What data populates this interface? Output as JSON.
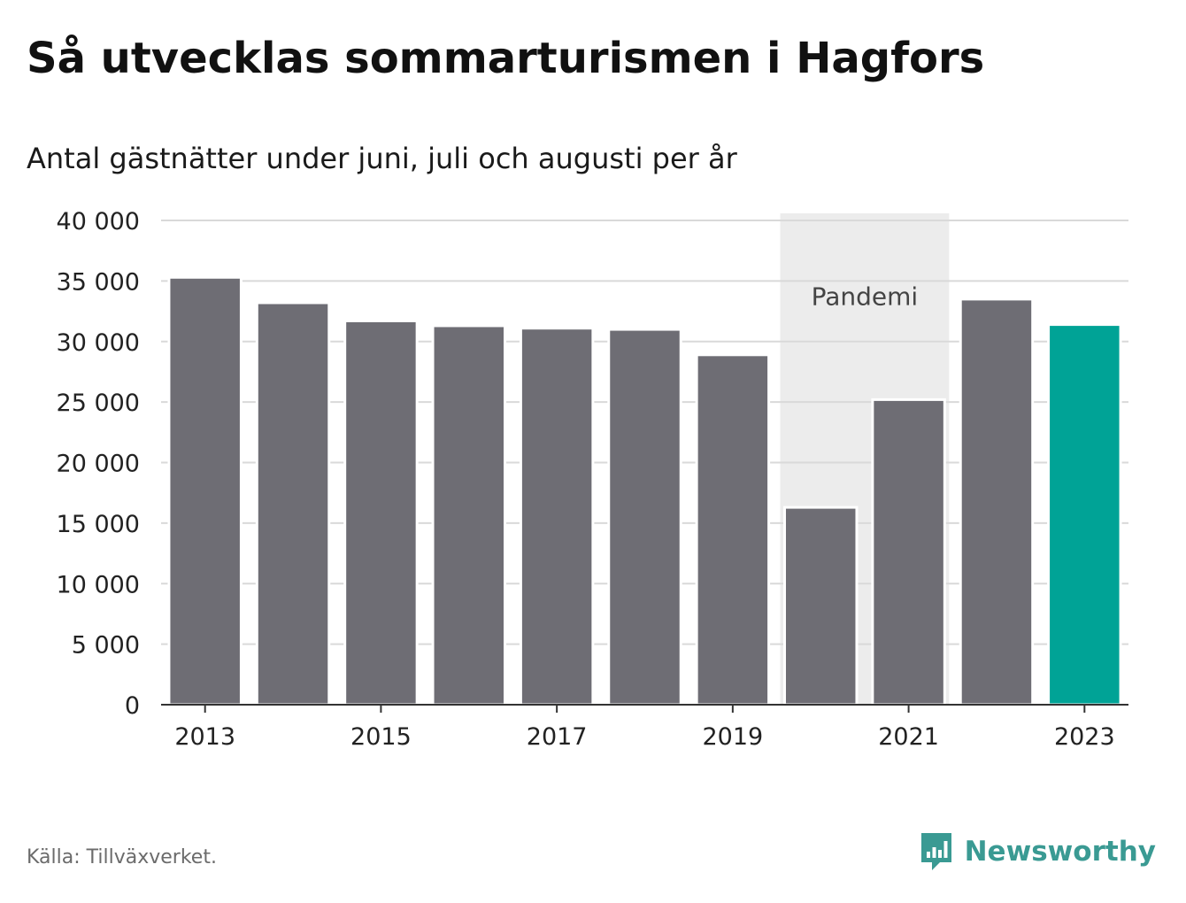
{
  "header": {
    "title": "Så utvecklas sommarturismen i Hagfors",
    "subtitle": "Antal gästnätter under juni, juli och augusti per år"
  },
  "footer": {
    "source": "Källa: Tillväxverket.",
    "brand": "Newsworthy",
    "brand_icon": "newsworthy-logo-icon"
  },
  "colors": {
    "bar": "#6e6d74",
    "highlight": "#00a396",
    "band": "#ececec",
    "grid": "#d9d9d9",
    "axis": "#333333",
    "brand": "#3a9a93"
  },
  "chart_data": {
    "type": "bar",
    "categories": [
      "2013",
      "2014",
      "2015",
      "2016",
      "2017",
      "2018",
      "2019",
      "2020",
      "2021",
      "2022",
      "2023"
    ],
    "values": [
      35300,
      33200,
      31700,
      31300,
      31100,
      31000,
      28900,
      16300,
      25200,
      33500,
      31400
    ],
    "highlight_category": "2023",
    "x_tick_labels": [
      "2013",
      "2015",
      "2017",
      "2019",
      "2021",
      "2023"
    ],
    "y_ticks": [
      0,
      5000,
      10000,
      15000,
      20000,
      25000,
      30000,
      35000,
      40000
    ],
    "y_tick_labels": [
      "0",
      "5 000",
      "10 000",
      "15 000",
      "20 000",
      "25 000",
      "30 000",
      "35 000",
      "40 000"
    ],
    "ylim": [
      0,
      40000
    ],
    "grid": true,
    "legend": "none",
    "annotations": [
      {
        "label": "Pandemi",
        "from_category": "2020",
        "to_category": "2021"
      }
    ],
    "xlabel": "",
    "ylabel": ""
  }
}
